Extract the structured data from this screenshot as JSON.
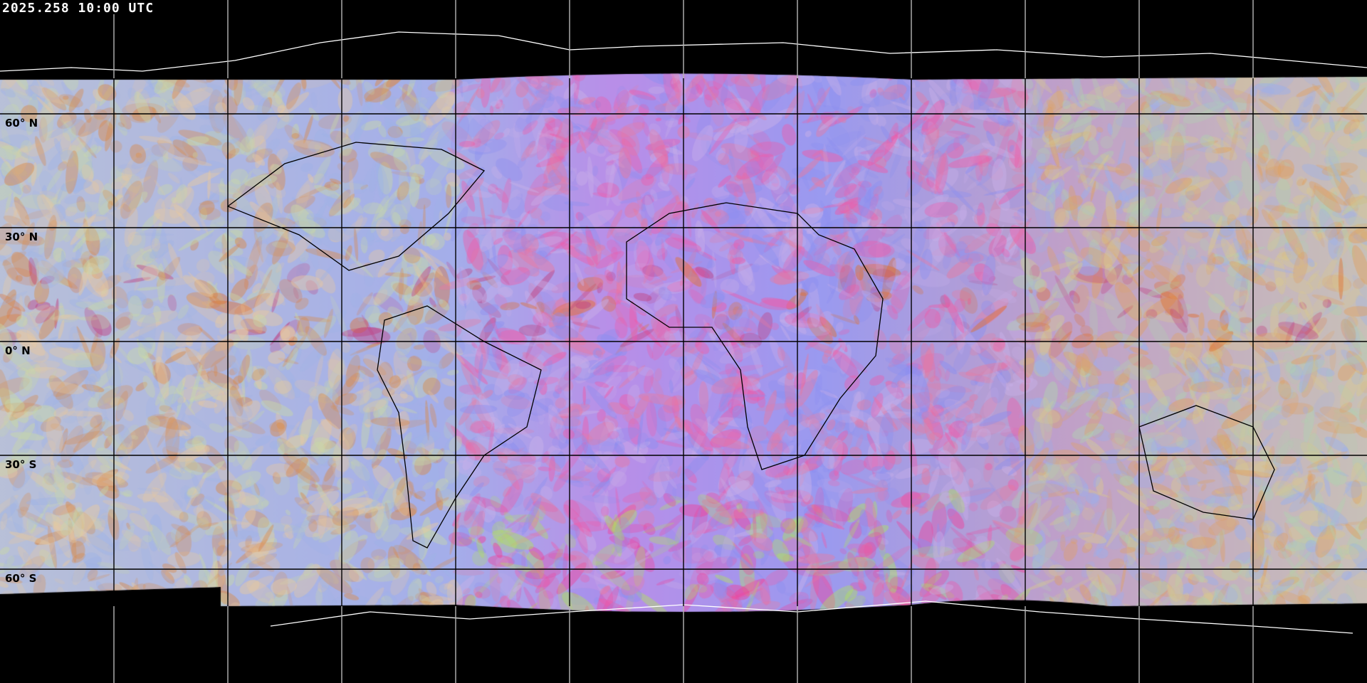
{
  "header": {
    "timestamp": "2025.258 10:00 UTC"
  },
  "map": {
    "projection": "equirectangular",
    "graticule_spacing_degrees": 30,
    "latitude_labels": [
      "60° N",
      "30° N",
      "0° N",
      "30° S",
      "60° S"
    ],
    "graticule_color": "#000000",
    "coastline_color_imagery": "#000000",
    "coastline_color_background": "#ffffff",
    "background_color": "#000000"
  }
}
